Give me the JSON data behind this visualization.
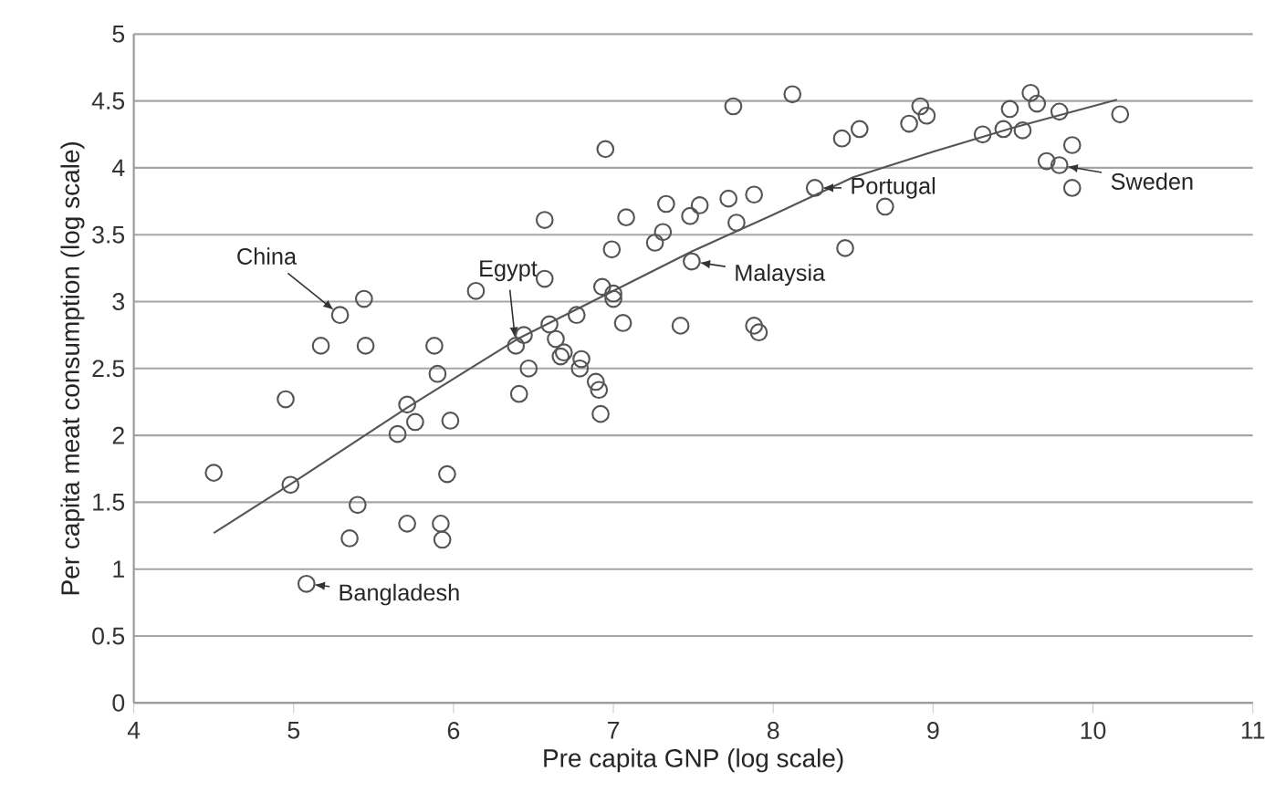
{
  "chart_data": {
    "type": "scatter",
    "xlabel": "Pre capita GNP (log scale)",
    "ylabel": "Per capita meat consumption (log scale)",
    "xlim": [
      4,
      11
    ],
    "ylim": [
      0,
      5
    ],
    "xticks": [
      4,
      5,
      6,
      7,
      8,
      9,
      10,
      11
    ],
    "yticks": [
      0,
      0.5,
      1,
      1.5,
      2,
      2.5,
      3,
      3.5,
      4,
      4.5,
      5
    ],
    "grid": "y",
    "marker": "circle",
    "series": [
      {
        "color": "#555555",
        "x": [
          4.5,
          4.95,
          4.98,
          5.08,
          5.17,
          5.29,
          5.44,
          5.45,
          5.35,
          5.4,
          5.65,
          5.71,
          5.76,
          5.71,
          5.88,
          5.9,
          5.98,
          5.96,
          5.92,
          5.93,
          6.14,
          6.39,
          6.44,
          6.41,
          6.47,
          6.57,
          6.57,
          6.6,
          6.64,
          6.69,
          6.67,
          6.77,
          6.8,
          6.79,
          6.89,
          6.91,
          6.92,
          6.95,
          6.93,
          7.0,
          7.0,
          6.99,
          7.08,
          7.06,
          7.26,
          7.31,
          7.33,
          7.42,
          7.48,
          7.49,
          7.54,
          7.72,
          7.77,
          7.88,
          7.75,
          7.88,
          7.91,
          8.12,
          8.26,
          8.45,
          8.43,
          8.54,
          8.7,
          8.85,
          8.92,
          8.96,
          9.31,
          9.44,
          9.56,
          9.48,
          9.61,
          9.65,
          9.79,
          9.71,
          9.79,
          9.87,
          9.87,
          10.17
        ],
        "values": [
          1.72,
          2.27,
          1.63,
          0.89,
          2.67,
          2.9,
          3.02,
          2.67,
          1.23,
          1.48,
          2.01,
          2.23,
          2.1,
          1.34,
          2.67,
          2.46,
          2.11,
          1.71,
          1.34,
          1.22,
          3.08,
          2.67,
          2.75,
          2.31,
          2.5,
          3.61,
          3.17,
          2.83,
          2.72,
          2.62,
          2.59,
          2.9,
          2.57,
          2.5,
          2.4,
          2.34,
          2.16,
          4.14,
          3.11,
          3.06,
          3.02,
          3.39,
          3.63,
          2.84,
          3.44,
          3.52,
          3.73,
          2.82,
          3.64,
          3.3,
          3.72,
          3.77,
          3.59,
          3.8,
          4.46,
          2.82,
          2.77,
          4.55,
          3.85,
          3.4,
          4.22,
          4.29,
          3.71,
          4.33,
          4.46,
          4.39,
          4.25,
          4.29,
          4.28,
          4.44,
          4.56,
          4.48,
          4.42,
          4.05,
          4.02,
          4.17,
          3.85,
          4.4
        ]
      },
      {
        "type": "line",
        "marker": "none",
        "color": "#555555",
        "x": [
          4.5,
          5.0,
          5.7,
          6.4,
          7.0,
          7.5,
          8.0,
          8.5,
          9.0,
          9.5,
          10.15
        ],
        "values": [
          1.27,
          1.65,
          2.2,
          2.72,
          3.08,
          3.38,
          3.65,
          3.93,
          4.12,
          4.3,
          4.51
        ]
      }
    ],
    "annotations": [
      {
        "text": "China",
        "x": 5.29,
        "y": 2.9
      },
      {
        "text": "Egypt",
        "x": 6.39,
        "y": 2.67
      },
      {
        "text": "Bangladesh",
        "x": 5.08,
        "y": 0.89
      },
      {
        "text": "Malaysia",
        "x": 7.49,
        "y": 3.3
      },
      {
        "text": "Portugal",
        "x": 8.26,
        "y": 3.85
      },
      {
        "text": "Sweden",
        "x": 9.79,
        "y": 4.02
      }
    ]
  }
}
